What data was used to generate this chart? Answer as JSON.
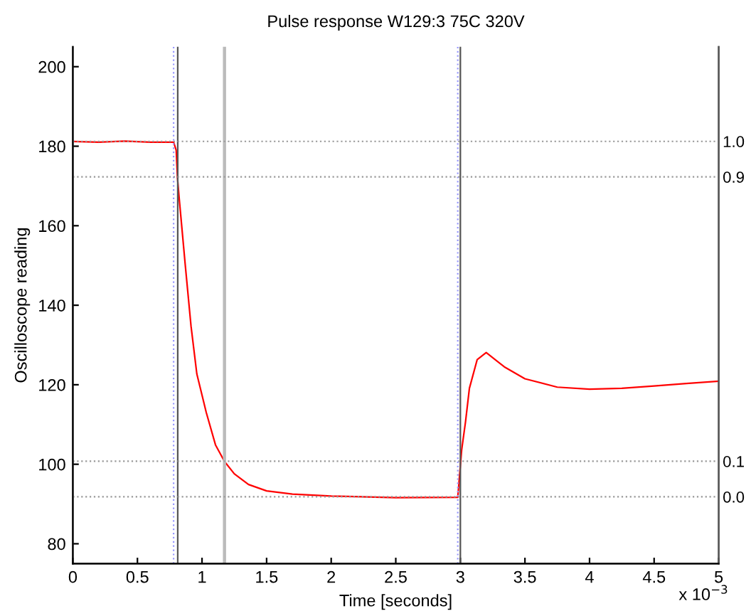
{
  "chart_data": {
    "type": "line",
    "title": "Pulse response W129:3 75C 320V",
    "xlabel": "Time [seconds]",
    "ylabel": "Oscilloscope reading",
    "annotations": [
      "x 10$^{−3}$"
    ],
    "x": [
      0,
      0.2,
      0.4,
      0.6,
      0.78,
      0.8,
      0.81,
      0.823,
      0.87,
      0.915,
      0.96,
      1.033,
      1.105,
      1.174,
      1.25,
      1.36,
      1.5,
      1.7,
      2.0,
      2.5,
      2.98,
      3.01,
      3.04,
      3.07,
      3.13,
      3.2,
      3.34,
      3.5,
      3.75,
      4.0,
      4.25,
      4.5,
      4.75,
      5.0
    ],
    "series": [
      {
        "color": "#ff0000",
        "values": [
          181.2,
          181.0,
          181.3,
          181.0,
          181.0,
          179,
          172,
          167,
          150.2,
          134.7,
          122.7,
          113,
          104.8,
          100.7,
          97.6,
          94.9,
          93.3,
          92.5,
          92,
          91.6,
          91.7,
          103.6,
          110.7,
          119.1,
          126.3,
          128.1,
          124.5,
          121.5,
          119.4,
          118.9,
          119.1,
          119.7,
          120.3,
          120.9
        ]
      }
    ],
    "xlim": [
      0,
      5
    ],
    "xticks": [
      0,
      0.5,
      1,
      1.5,
      2,
      2.5,
      3,
      3.5,
      4,
      4.5,
      5
    ],
    "ylim": [
      75,
      205
    ],
    "yticks": [
      80,
      100,
      120,
      140,
      160,
      180,
      200
    ],
    "ref_lines": [
      {
        "axis": "y2",
        "value": 1,
        "color": "#999999",
        "line_style": "dotted"
      },
      {
        "axis": "y2",
        "value": 0.9,
        "color": "#999999",
        "line_style": "dotted"
      },
      {
        "axis": "y2",
        "value": 0.1,
        "color": "#999999",
        "line_style": "dotted"
      },
      {
        "axis": "y2",
        "value": 0,
        "color": "#999999",
        "line_style": "dotted"
      },
      {
        "axis": "x",
        "value": 0.78,
        "color": "#9999ff",
        "line_style": "dotted"
      },
      {
        "axis": "x",
        "value": 0.812,
        "color": "#555555",
        "line_style": "solid"
      },
      {
        "axis": "x",
        "value": 1.174,
        "color": "#bbbbbb",
        "line_style": "solid"
      },
      {
        "axis": "x",
        "value": 2.98,
        "color": "#9999ff",
        "line_style": "dotted"
      },
      {
        "axis": "x",
        "value": 3.0,
        "color": "#555555",
        "line_style": "solid"
      }
    ],
    "y2lim": [
      -0.188,
      1.266
    ],
    "y2ticks": [
      {
        "value": 0,
        "label": "0.0"
      },
      {
        "value": 0.1,
        "label": "0.1"
      },
      {
        "value": 0.9,
        "label": "0.9"
      },
      {
        "value": 1,
        "label": "1.0"
      }
    ],
    "grid": false,
    "legend": false,
    "marker": "none",
    "line_style": "solid"
  }
}
